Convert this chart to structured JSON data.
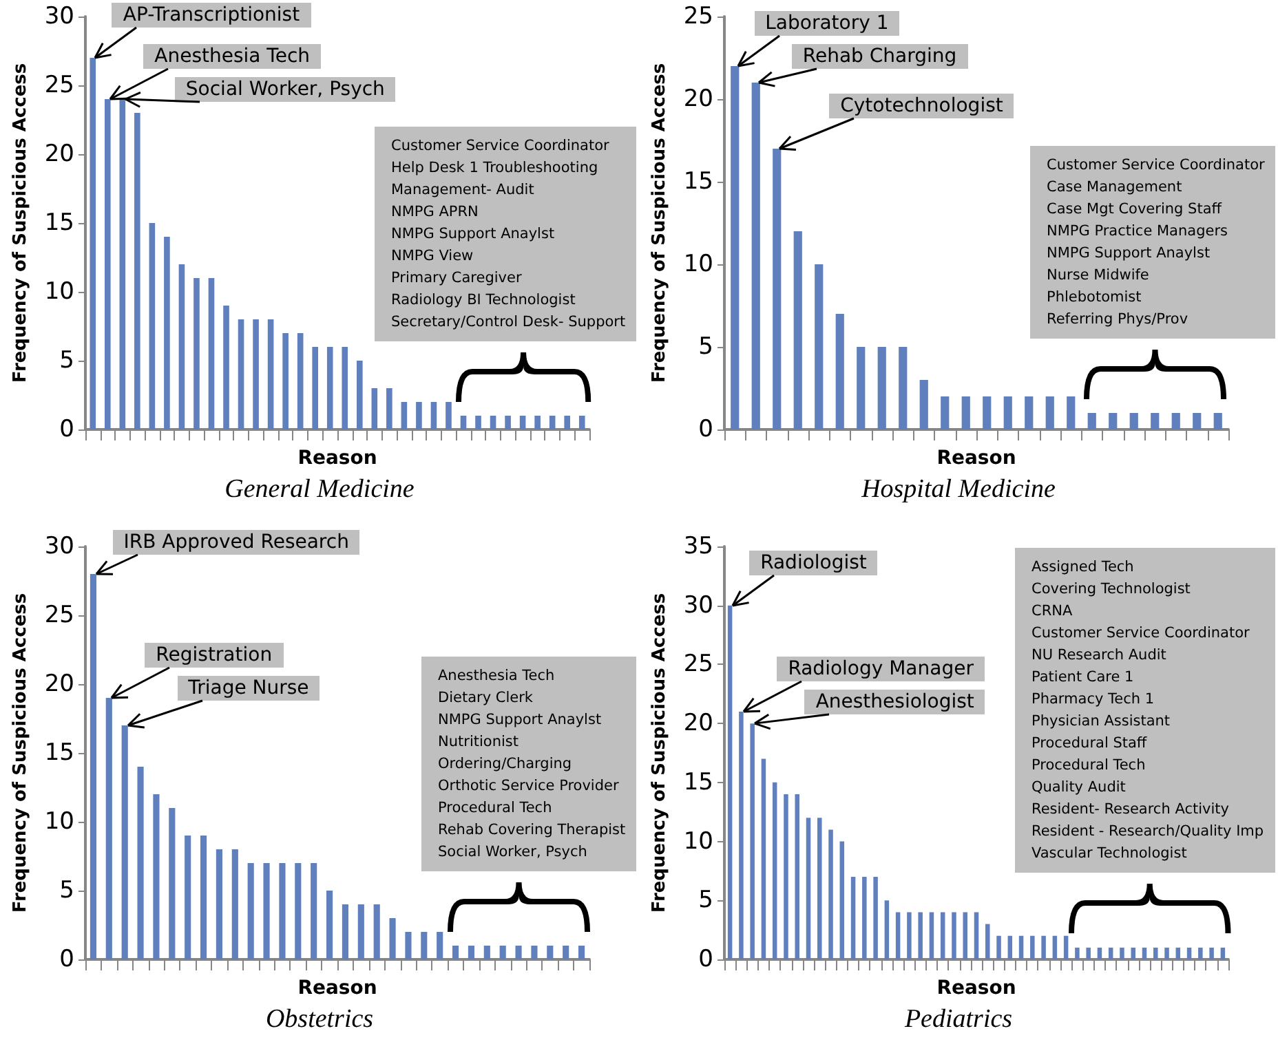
{
  "chart_data": [
    {
      "type": "bar",
      "title": "General Medicine",
      "xlabel": "Reason",
      "ylabel": "Frequency of Suspicious Access",
      "categories": [
        null,
        null,
        null,
        null,
        null,
        null,
        null,
        null,
        null,
        null,
        null,
        null,
        null,
        null,
        null,
        null,
        null,
        null,
        null,
        null,
        null,
        null,
        null,
        null,
        null,
        null,
        null,
        null,
        null,
        null,
        null,
        null,
        null,
        null
      ],
      "values": [
        27,
        24,
        24,
        23,
        15,
        14,
        12,
        11,
        11,
        9,
        8,
        8,
        8,
        7,
        7,
        6,
        6,
        6,
        5,
        3,
        3,
        2,
        2,
        2,
        2,
        1,
        1,
        1,
        1,
        1,
        1,
        1,
        1,
        1
      ],
      "color": "#5f7fbd",
      "ylim": [
        0,
        30
      ],
      "yticks": [
        0,
        5,
        10,
        15,
        20,
        25,
        30
      ],
      "annotations": [
        "AP-Transcriptionist",
        "Anesthesia Tech",
        "Social Worker, Psych",
        "Customer Service Coordinator\nHelp Desk 1 Troubleshooting\nManagement- Audit\nNMPG APRN\nNMPG Support Anaylst\nNMPG View\nPrimary Caregiver\nRadiology BI Technologist\nSecretary/Control Desk- Support"
      ]
    },
    {
      "type": "bar",
      "title": "Hospital Medicine",
      "xlabel": "Reason",
      "ylabel": "Frequency of Suspicious Access",
      "categories": [
        null,
        null,
        null,
        null,
        null,
        null,
        null,
        null,
        null,
        null,
        null,
        null,
        null,
        null,
        null,
        null,
        null,
        null,
        null,
        null,
        null,
        null,
        null,
        null
      ],
      "values": [
        22,
        21,
        17,
        12,
        10,
        7,
        5,
        5,
        5,
        3,
        2,
        2,
        2,
        2,
        2,
        2,
        2,
        1,
        1,
        1,
        1,
        1,
        1,
        1
      ],
      "color": "#5f7fbd",
      "ylim": [
        0,
        25
      ],
      "yticks": [
        0,
        5,
        10,
        15,
        20,
        25
      ],
      "annotations": [
        "Laboratory 1",
        "Rehab Charging",
        "Cytotechnologist",
        "Customer Service Coordinator\nCase Management\nCase Mgt Covering Staff\nNMPG Practice Managers\nNMPG Support Anaylst\nNurse Midwife\nPhlebotomist\nReferring Phys/Prov"
      ]
    },
    {
      "type": "bar",
      "title": "Obstetrics",
      "xlabel": "Reason",
      "ylabel": "Frequency of Suspicious Access",
      "categories": [
        null,
        null,
        null,
        null,
        null,
        null,
        null,
        null,
        null,
        null,
        null,
        null,
        null,
        null,
        null,
        null,
        null,
        null,
        null,
        null,
        null,
        null,
        null,
        null,
        null,
        null,
        null,
        null,
        null,
        null,
        null,
        null
      ],
      "values": [
        28,
        19,
        17,
        14,
        12,
        11,
        9,
        9,
        8,
        8,
        7,
        7,
        7,
        7,
        7,
        5,
        4,
        4,
        4,
        3,
        2,
        2,
        2,
        1,
        1,
        1,
        1,
        1,
        1,
        1,
        1,
        1
      ],
      "color": "#5f7fbd",
      "ylim": [
        0,
        30
      ],
      "yticks": [
        0,
        5,
        10,
        15,
        20,
        25,
        30
      ],
      "annotations": [
        "IRB Approved Research",
        "Registration",
        "Triage Nurse",
        "Anesthesia Tech\nDietary Clerk\nNMPG Support Anaylst\nNutritionist\nOrdering/Charging\nOrthotic Service Provider\nProcedural Tech\nRehab Covering Therapist\nSocial Worker, Psych"
      ]
    },
    {
      "type": "bar",
      "title": "Pediatrics",
      "xlabel": "Reason",
      "ylabel": "Frequency of Suspicious Access",
      "categories": [
        null,
        null,
        null,
        null,
        null,
        null,
        null,
        null,
        null,
        null,
        null,
        null,
        null,
        null,
        null,
        null,
        null,
        null,
        null,
        null,
        null,
        null,
        null,
        null,
        null,
        null,
        null,
        null,
        null,
        null,
        null,
        null,
        null,
        null,
        null,
        null,
        null,
        null,
        null,
        null,
        null,
        null,
        null,
        null,
        null
      ],
      "values": [
        30,
        21,
        20,
        17,
        15,
        14,
        14,
        12,
        12,
        11,
        10,
        7,
        7,
        7,
        5,
        4,
        4,
        4,
        4,
        4,
        4,
        4,
        4,
        3,
        2,
        2,
        2,
        2,
        2,
        2,
        2,
        1,
        1,
        1,
        1,
        1,
        1,
        1,
        1,
        1,
        1,
        1,
        1,
        1,
        1
      ],
      "color": "#5f7fbd",
      "ylim": [
        0,
        35
      ],
      "yticks": [
        0,
        5,
        10,
        15,
        20,
        25,
        30,
        35
      ],
      "annotations": [
        "Radiologist",
        "Radiology Manager",
        "Anesthesiologist",
        "Assigned Tech\nCovering Technologist\nCRNA\nCustomer Service Coordinator\nNU Research Audit\nPatient Care 1\nPharmacy Tech 1\nPhysician Assistant\nProcedural Staff\nProcedural Tech\nQuality Audit\nResident- Research Activity\nResident - Research/Quality Imp\nVascular Technologist"
      ]
    }
  ]
}
